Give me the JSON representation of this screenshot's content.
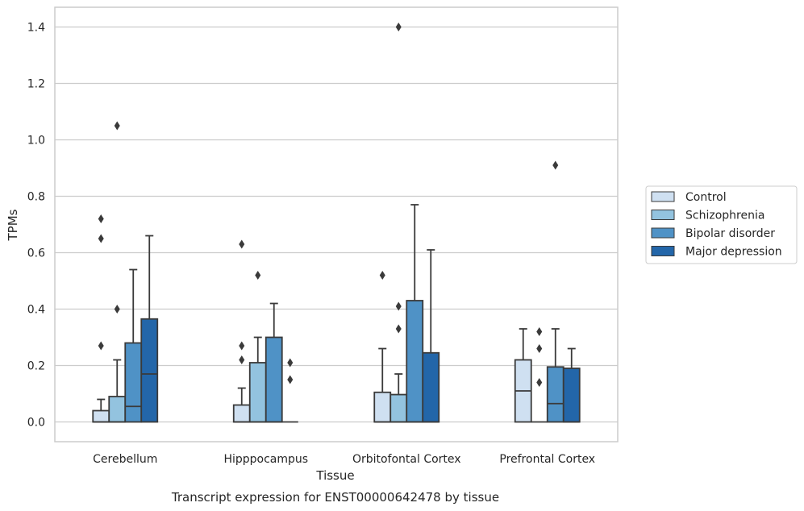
{
  "chart_data": {
    "type": "boxplot",
    "caption": "Transcript expression for ENST00000642478 by tissue",
    "xlabel": "Tissue",
    "ylabel": "TPMs",
    "ylim": [
      -0.07,
      1.47
    ],
    "yticks": [
      "0.0",
      "0.2",
      "0.4",
      "0.6",
      "0.8",
      "1.0",
      "1.2",
      "1.4"
    ],
    "grid": true,
    "legend_position": "right",
    "categories": [
      "Cerebellum",
      "Hipppocampus",
      "Orbitofontal Cortex",
      "Prefrontal Cortex"
    ],
    "series": [
      {
        "name": "Control",
        "color": "#cfe0f1",
        "boxes": [
          {
            "q1": 0.0,
            "median": 0.0,
            "q3": 0.04,
            "whisker_low": 0.0,
            "whisker_high": 0.08,
            "outliers": [
              0.72,
              0.65,
              0.27
            ]
          },
          {
            "q1": 0.0,
            "median": 0.0,
            "q3": 0.06,
            "whisker_low": 0.0,
            "whisker_high": 0.12,
            "outliers": [
              0.63,
              0.27,
              0.22
            ]
          },
          {
            "q1": 0.0,
            "median": 0.0,
            "q3": 0.105,
            "whisker_low": 0.0,
            "whisker_high": 0.26,
            "outliers": [
              0.52
            ]
          },
          {
            "q1": 0.0,
            "median": 0.11,
            "q3": 0.22,
            "whisker_low": 0.0,
            "whisker_high": 0.33,
            "outliers": []
          }
        ]
      },
      {
        "name": "Schizophrenia",
        "color": "#93c3df",
        "boxes": [
          {
            "q1": 0.0,
            "median": 0.0,
            "q3": 0.09,
            "whisker_low": 0.0,
            "whisker_high": 0.22,
            "outliers": [
              1.05,
              0.4
            ]
          },
          {
            "q1": 0.0,
            "median": 0.0,
            "q3": 0.21,
            "whisker_low": 0.0,
            "whisker_high": 0.3,
            "outliers": [
              0.52
            ]
          },
          {
            "q1": 0.0,
            "median": 0.0,
            "q3": 0.097,
            "whisker_low": 0.0,
            "whisker_high": 0.17,
            "outliers": [
              1.4,
              0.41,
              0.33
            ]
          },
          {
            "q1": 0.0,
            "median": 0.0,
            "q3": 0.0,
            "whisker_low": 0.0,
            "whisker_high": 0.0,
            "outliers": [
              0.32,
              0.26,
              0.14
            ]
          }
        ]
      },
      {
        "name": "Bipolar disorder",
        "color": "#4f92c6",
        "boxes": [
          {
            "q1": 0.0,
            "median": 0.055,
            "q3": 0.28,
            "whisker_low": 0.0,
            "whisker_high": 0.54,
            "outliers": []
          },
          {
            "q1": 0.0,
            "median": 0.0,
            "q3": 0.3,
            "whisker_low": 0.0,
            "whisker_high": 0.42,
            "outliers": []
          },
          {
            "q1": 0.0,
            "median": 0.0,
            "q3": 0.43,
            "whisker_low": 0.0,
            "whisker_high": 0.77,
            "outliers": []
          },
          {
            "q1": 0.0,
            "median": 0.065,
            "q3": 0.195,
            "whisker_low": 0.0,
            "whisker_high": 0.33,
            "outliers": [
              0.91
            ]
          }
        ]
      },
      {
        "name": "Major depression",
        "color": "#2366a9",
        "boxes": [
          {
            "q1": 0.0,
            "median": 0.17,
            "q3": 0.365,
            "whisker_low": 0.0,
            "whisker_high": 0.66,
            "outliers": []
          },
          {
            "q1": 0.0,
            "median": 0.0,
            "q3": 0.0,
            "whisker_low": 0.0,
            "whisker_high": 0.0,
            "outliers": [
              0.21,
              0.15
            ]
          },
          {
            "q1": 0.0,
            "median": 0.0,
            "q3": 0.245,
            "whisker_low": 0.0,
            "whisker_high": 0.61,
            "outliers": []
          },
          {
            "q1": 0.0,
            "median": 0.0,
            "q3": 0.19,
            "whisker_low": 0.0,
            "whisker_high": 0.26,
            "outliers": []
          }
        ]
      }
    ],
    "colors": {
      "grid": "#cccccc",
      "frame": "#cccccc",
      "stroke": "#3a3a3a"
    }
  }
}
